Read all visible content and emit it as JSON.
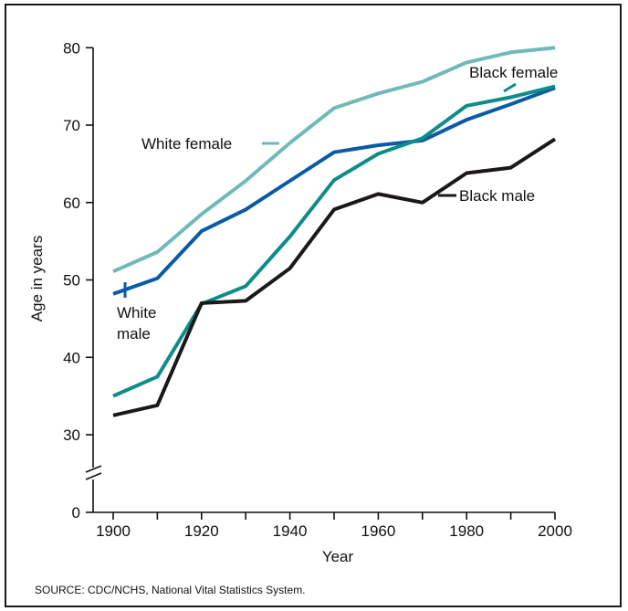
{
  "chart_data": {
    "type": "line",
    "x": [
      1900,
      1910,
      1920,
      1930,
      1940,
      1950,
      1960,
      1970,
      1980,
      1990,
      2000
    ],
    "xlabel": "Year",
    "ylabel": "Age in years",
    "xlim": [
      1900,
      2000
    ],
    "ylim": [
      0,
      80
    ],
    "axis_break": true,
    "x_ticks": [
      "1900",
      "1920",
      "1940",
      "1960",
      "1980",
      "2000"
    ],
    "y_ticks": [
      "0",
      "30",
      "40",
      "50",
      "60",
      "70",
      "80"
    ],
    "series": [
      {
        "name": "White female",
        "color": "#6fbab8",
        "values": [
          51.1,
          53.6,
          58.5,
          62.8,
          67.7,
          72.2,
          74.1,
          75.6,
          78.1,
          79.4,
          80.0
        ]
      },
      {
        "name": "White male",
        "color": "#0b5aa8",
        "values": [
          48.2,
          50.2,
          56.3,
          59.1,
          62.8,
          66.5,
          67.4,
          68.0,
          70.7,
          72.7,
          74.8
        ]
      },
      {
        "name": "Black female",
        "color": "#0e8c88",
        "values": [
          35.0,
          37.5,
          46.9,
          49.2,
          55.6,
          62.9,
          66.3,
          68.3,
          72.5,
          73.6,
          75.0
        ]
      },
      {
        "name": "Black male",
        "color": "#1c1818",
        "values": [
          32.5,
          33.8,
          47.0,
          47.3,
          51.5,
          59.1,
          61.1,
          60.0,
          63.8,
          64.5,
          68.2
        ]
      }
    ],
    "labels": {
      "white_female": "White female",
      "white_male_1": "White",
      "white_male_2": "male",
      "black_female": "Black female",
      "black_male": "Black male"
    },
    "source": "SOURCE: CDC/NCHS, National Vital Statistics System."
  }
}
